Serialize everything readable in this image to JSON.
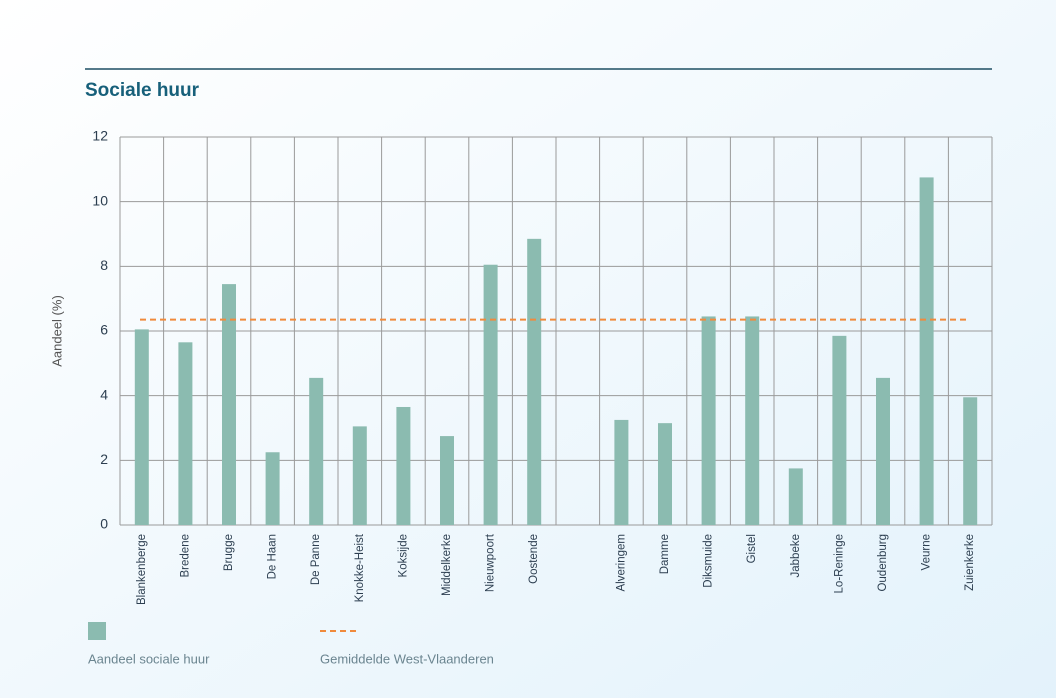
{
  "chart_data": {
    "type": "bar",
    "title": "Sociale huur",
    "ylabel": "Aandeel (%)",
    "categories": [
      "Blankenberge",
      "Bredene",
      "Brugge",
      "De Haan",
      "De Panne",
      "Knokke-Heist",
      "Koksijde",
      "Middelkerke",
      "Nieuwpoort",
      "Oostende",
      null,
      "Alveringem",
      "Damme",
      "Diksmuide",
      "Gistel",
      "Jabbeke",
      "Lo-Reninge",
      "Oudenburg",
      "Veurne",
      "Zuienkerke"
    ],
    "series": [
      {
        "name": "Aandeel sociale huur",
        "color": "#8bbbb0",
        "values": [
          6.05,
          5.65,
          7.45,
          2.25,
          4.55,
          3.05,
          3.65,
          2.75,
          8.05,
          8.85,
          null,
          3.25,
          3.15,
          6.45,
          6.45,
          1.75,
          5.85,
          4.55,
          10.75,
          3.95
        ]
      }
    ],
    "reference_line": {
      "name": "Gemiddelde West-Vlaanderen",
      "value": 6.35,
      "color": "#f08a3c"
    },
    "ylim": [
      0,
      12
    ],
    "yticks": [
      0,
      2,
      4,
      6,
      8,
      10,
      12
    ],
    "grid": true
  }
}
